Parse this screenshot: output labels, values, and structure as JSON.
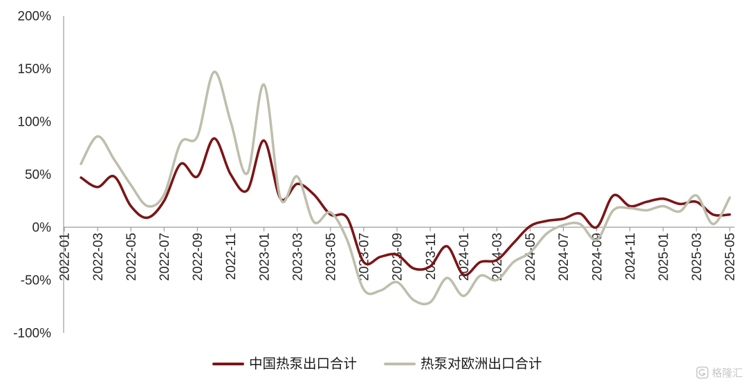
{
  "chart_data": {
    "type": "line",
    "smooth": true,
    "grid": false,
    "legend": "bottom",
    "xlim": [
      "2022-01",
      "2025-05"
    ],
    "ylim": [
      -100,
      200
    ],
    "x_ticks": [
      "2022-01",
      "2022-03",
      "2022-05",
      "2022-07",
      "2022-09",
      "2022-11",
      "2023-01",
      "2023-03",
      "2023-05",
      "2023-07",
      "2023-09",
      "2023-11",
      "2024-01",
      "2024-03",
      "2024-05",
      "2024-07",
      "2024-09",
      "2024-11",
      "2025-01",
      "2025-03",
      "2025-05"
    ],
    "y_ticks": [
      "200%",
      "150%",
      "100%",
      "50%",
      "0%",
      "-50%",
      "-100%"
    ],
    "x": [
      "2022-02",
      "2022-03",
      "2022-04",
      "2022-05",
      "2022-06",
      "2022-07",
      "2022-08",
      "2022-09",
      "2022-10",
      "2022-11",
      "2022-12",
      "2023-01",
      "2023-02",
      "2023-03",
      "2023-04",
      "2023-05",
      "2023-06",
      "2023-07",
      "2023-08",
      "2023-09",
      "2023-10",
      "2023-11",
      "2023-12",
      "2024-01",
      "2024-02",
      "2024-03",
      "2024-04",
      "2024-05",
      "2024-06",
      "2024-07",
      "2024-08",
      "2024-09",
      "2024-10",
      "2024-11",
      "2024-12",
      "2025-01",
      "2025-02",
      "2025-03",
      "2025-04",
      "2025-05"
    ],
    "series": [
      {
        "name": "中国热泵出口合计",
        "color": "#7B1517",
        "values": [
          47,
          38,
          48,
          20,
          9,
          25,
          60,
          48,
          84,
          50,
          35,
          82,
          27,
          41,
          31,
          12,
          9,
          -33,
          -28,
          -26,
          -39,
          -37,
          -18,
          -45,
          -33,
          -31,
          -15,
          1,
          6,
          8,
          13,
          0,
          30,
          20,
          24,
          27,
          22,
          24,
          12,
          12
        ]
      },
      {
        "name": "热泵对欧洲出口合计",
        "color": "#BEBEAC",
        "values": [
          60,
          86,
          64,
          40,
          20,
          31,
          80,
          86,
          147,
          100,
          51,
          135,
          27,
          48,
          5,
          14,
          -12,
          -59,
          -60,
          -52,
          -69,
          -71,
          -48,
          -65,
          -46,
          -50,
          -33,
          -24,
          -6,
          2,
          3,
          -12,
          16,
          18,
          16,
          20,
          15,
          30,
          3,
          28
        ]
      }
    ]
  },
  "watermark": "格隆汇"
}
